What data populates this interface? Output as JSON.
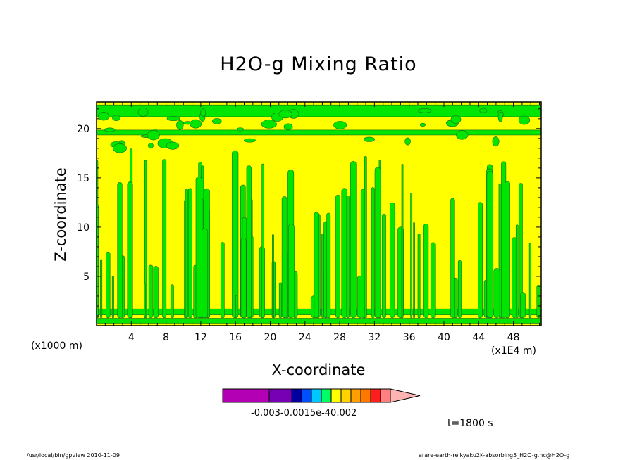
{
  "chart_data": {
    "type": "heatmap",
    "title": "H2O-g Mixing Ratio",
    "xlabel": "X-coordinate",
    "ylabel": "Z-coordinate",
    "x_unit": "(x1000 m)",
    "x_factor": "(x1E4 m)",
    "xlim": [
      0,
      51.2
    ],
    "ylim": [
      0,
      22.7
    ],
    "x_ticks": [
      "4",
      "8",
      "12",
      "16",
      "20",
      "24",
      "28",
      "32",
      "36",
      "40",
      "44",
      "48"
    ],
    "y_ticks": [
      "5",
      "10",
      "15",
      "20"
    ],
    "colorbar": {
      "colors": [
        "#b400b4",
        "#7800b4",
        "#0000a0",
        "#0050ff",
        "#00c8ff",
        "#00ff64",
        "#ffff00",
        "#ffd200",
        "#ffa000",
        "#ff7800",
        "#ff1e1e",
        "#ff8080",
        "#ffb4b4"
      ],
      "tick_labels_text": "-0.003-0.0015e-40.002"
    },
    "levels_visible": [
      {
        "label": "green band",
        "color": "#00e600"
      },
      {
        "label": "yellow band",
        "color": "#ffff00"
      }
    ],
    "time_label": "t=1800 s"
  },
  "footer": {
    "left": "/usr/local/bin/gpview   2010-11-09",
    "right": "arare-earth-reikyaku2K-absorbing5_H2O-g.nc@H2O-g"
  }
}
